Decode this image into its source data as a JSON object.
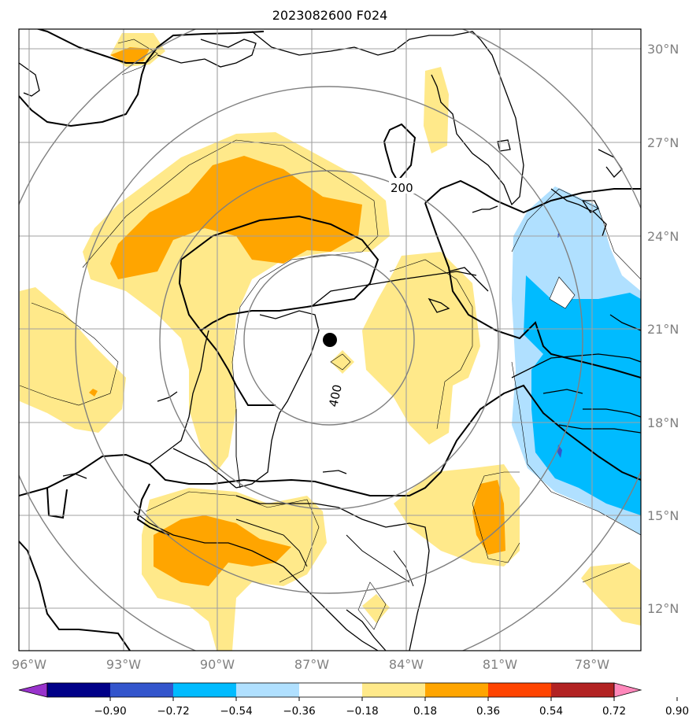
{
  "title": "2023082600 F024",
  "colors": {
    "neg_090": "#9933cc",
    "neg_072": "#000088",
    "neg_054": "#3355cc",
    "neg_036": "#00bbff",
    "neg_018": "#b0e0ff",
    "neutral": "#ffffff",
    "pos_018": "#ffe98a",
    "pos_036": "#ffa500",
    "pos_054": "#ff4400",
    "pos_072": "#b22222",
    "pos_090": "#ff88bb",
    "grid": "#a0a0a0",
    "range_ring": "#808080",
    "contour": "#000000"
  },
  "map": {
    "lon_ticks": [
      "96°W",
      "93°W",
      "90°W",
      "87°W",
      "84°W",
      "81°W",
      "78°W"
    ],
    "lat_ticks": [
      "30°N",
      "27°N",
      "24°N",
      "21°N",
      "18°N",
      "15°N",
      "12°N"
    ],
    "contour_labels": [
      {
        "text": "200",
        "value": 200
      },
      {
        "text": "400",
        "value": 400
      }
    ],
    "storm_center_marker": "black-dot"
  },
  "colorbar": {
    "ticks": [
      "−0.90",
      "−0.72",
      "−0.54",
      "−0.36",
      "−0.18",
      "0.18",
      "0.36",
      "0.54",
      "0.72",
      "0.90"
    ],
    "bins": [
      "neg_090",
      "neg_072",
      "neg_054",
      "neg_036",
      "neg_018",
      "neutral",
      "pos_018",
      "pos_036",
      "pos_054",
      "pos_072",
      "pos_090"
    ]
  }
}
